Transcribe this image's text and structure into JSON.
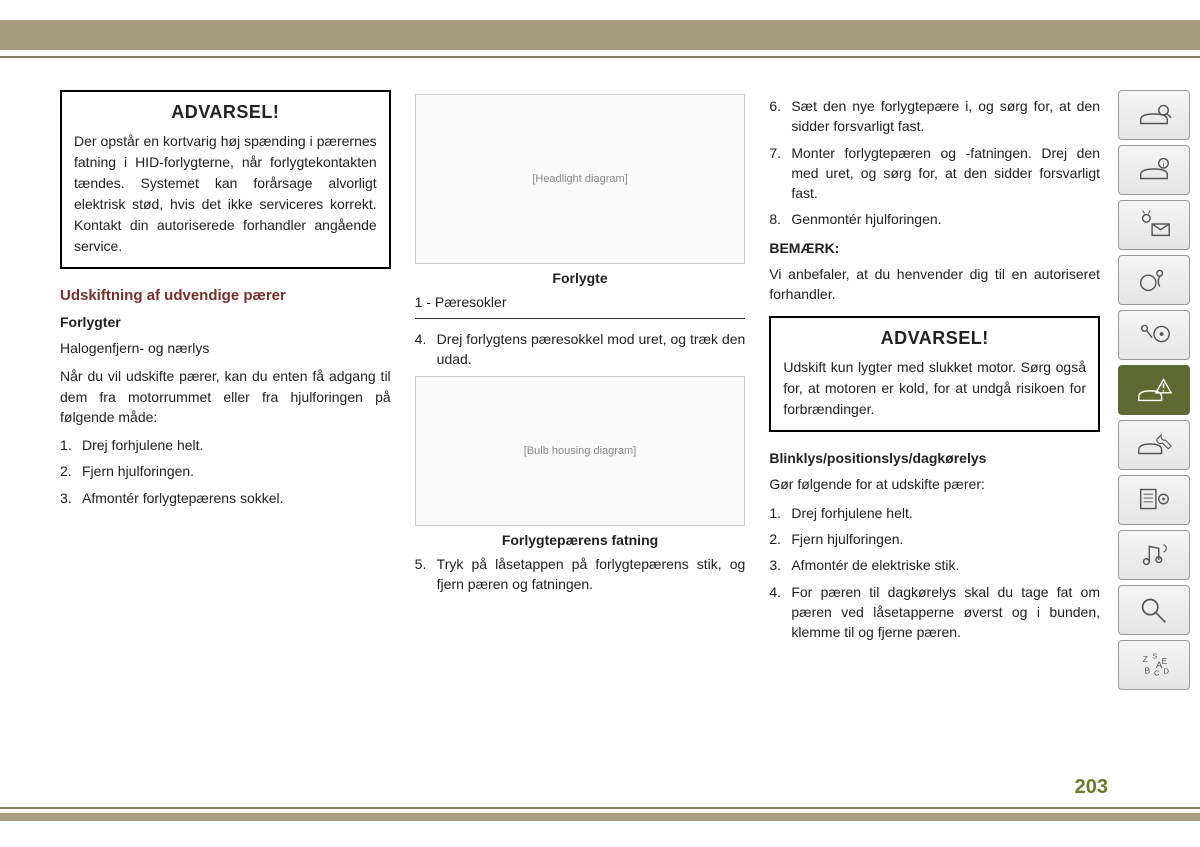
{
  "pageNumber": "203",
  "col1": {
    "warningTitle": "ADVARSEL!",
    "warningText": "Der opstår en kortvarig høj spænding i pærernes fatning i HID-forlygterne, når forlygtekontakten tændes. Systemet kan forårsage alvorligt elektrisk stød, hvis det ikke serviceres korrekt. Kontakt din autoriserede forhandler angående service.",
    "sectionTitle": "Udskiftning af udvendige pærer",
    "subTitle": "Forlygter",
    "p1": "Halogenfjern- og nærlys",
    "p2": "Når du vil udskifte pærer, kan du enten få adgang til dem fra motorrummet eller fra hjulforingen på følgende måde:",
    "steps": [
      "Drej forhjulene helt.",
      "Fjern hjulforingen.",
      "Afmontér forlygtepærens sokkel."
    ]
  },
  "col2": {
    "fig1Placeholder": "[Headlight diagram]",
    "fig1Caption": "Forlygte",
    "fig1Legend": "1 - Pæresokler",
    "stepsA": [
      {
        "n": "4.",
        "t": "Drej forlygtens pæresokkel mod uret, og træk den udad."
      }
    ],
    "fig2Placeholder": "[Bulb housing diagram]",
    "fig2Caption": "Forlygtepærens fatning",
    "stepsB": [
      {
        "n": "5.",
        "t": "Tryk på låsetappen på forlygtepærens stik, og fjern pæren og fatningen."
      }
    ]
  },
  "col3": {
    "stepsTop": [
      {
        "n": "6.",
        "t": "Sæt den nye forlygtepære i, og sørg for, at den sidder forsvarligt fast."
      },
      {
        "n": "7.",
        "t": "Monter forlygtepæren og -fatningen. Drej den med uret, og sørg for, at den sidder forsvarligt fast."
      },
      {
        "n": "8.",
        "t": "Genmontér hjulforingen."
      }
    ],
    "noteLabel": "BEMÆRK:",
    "noteText": "Vi anbefaler, at du henvender dig til en autoriseret forhandler.",
    "warningTitle": "ADVARSEL!",
    "warningText": "Udskift kun lygter med slukket motor. Sørg også for, at motoren er kold, for at undgå risikoen for forbrændinger.",
    "subTitle": "Blinklys/positionslys/dagkørelys",
    "p1": "Gør følgende for at udskifte pærer:",
    "steps": [
      {
        "n": "1.",
        "t": "Drej forhjulene helt."
      },
      {
        "n": "2.",
        "t": "Fjern hjulforingen."
      },
      {
        "n": "3.",
        "t": "Afmontér de elektriske stik."
      },
      {
        "n": "4.",
        "t": "For pæren til dagkørelys skal du tage fat om pæren ved låsetapperne øverst og i bunden, klemme til og fjerne pæren."
      }
    ]
  },
  "sidebar": {
    "activeIndex": 5,
    "icons": [
      "car-search",
      "car-info",
      "lights-mail",
      "airbag",
      "key-wheel",
      "car-warning",
      "car-wrench",
      "doc-gear",
      "nav-music",
      "magnifier",
      "alpha-index"
    ]
  },
  "colors": {
    "accent": "#a79e81",
    "rule": "#828062",
    "sectionTitle": "#7a2f2a",
    "active": "#5d6b32",
    "pageNum": "#6b7a2e"
  }
}
